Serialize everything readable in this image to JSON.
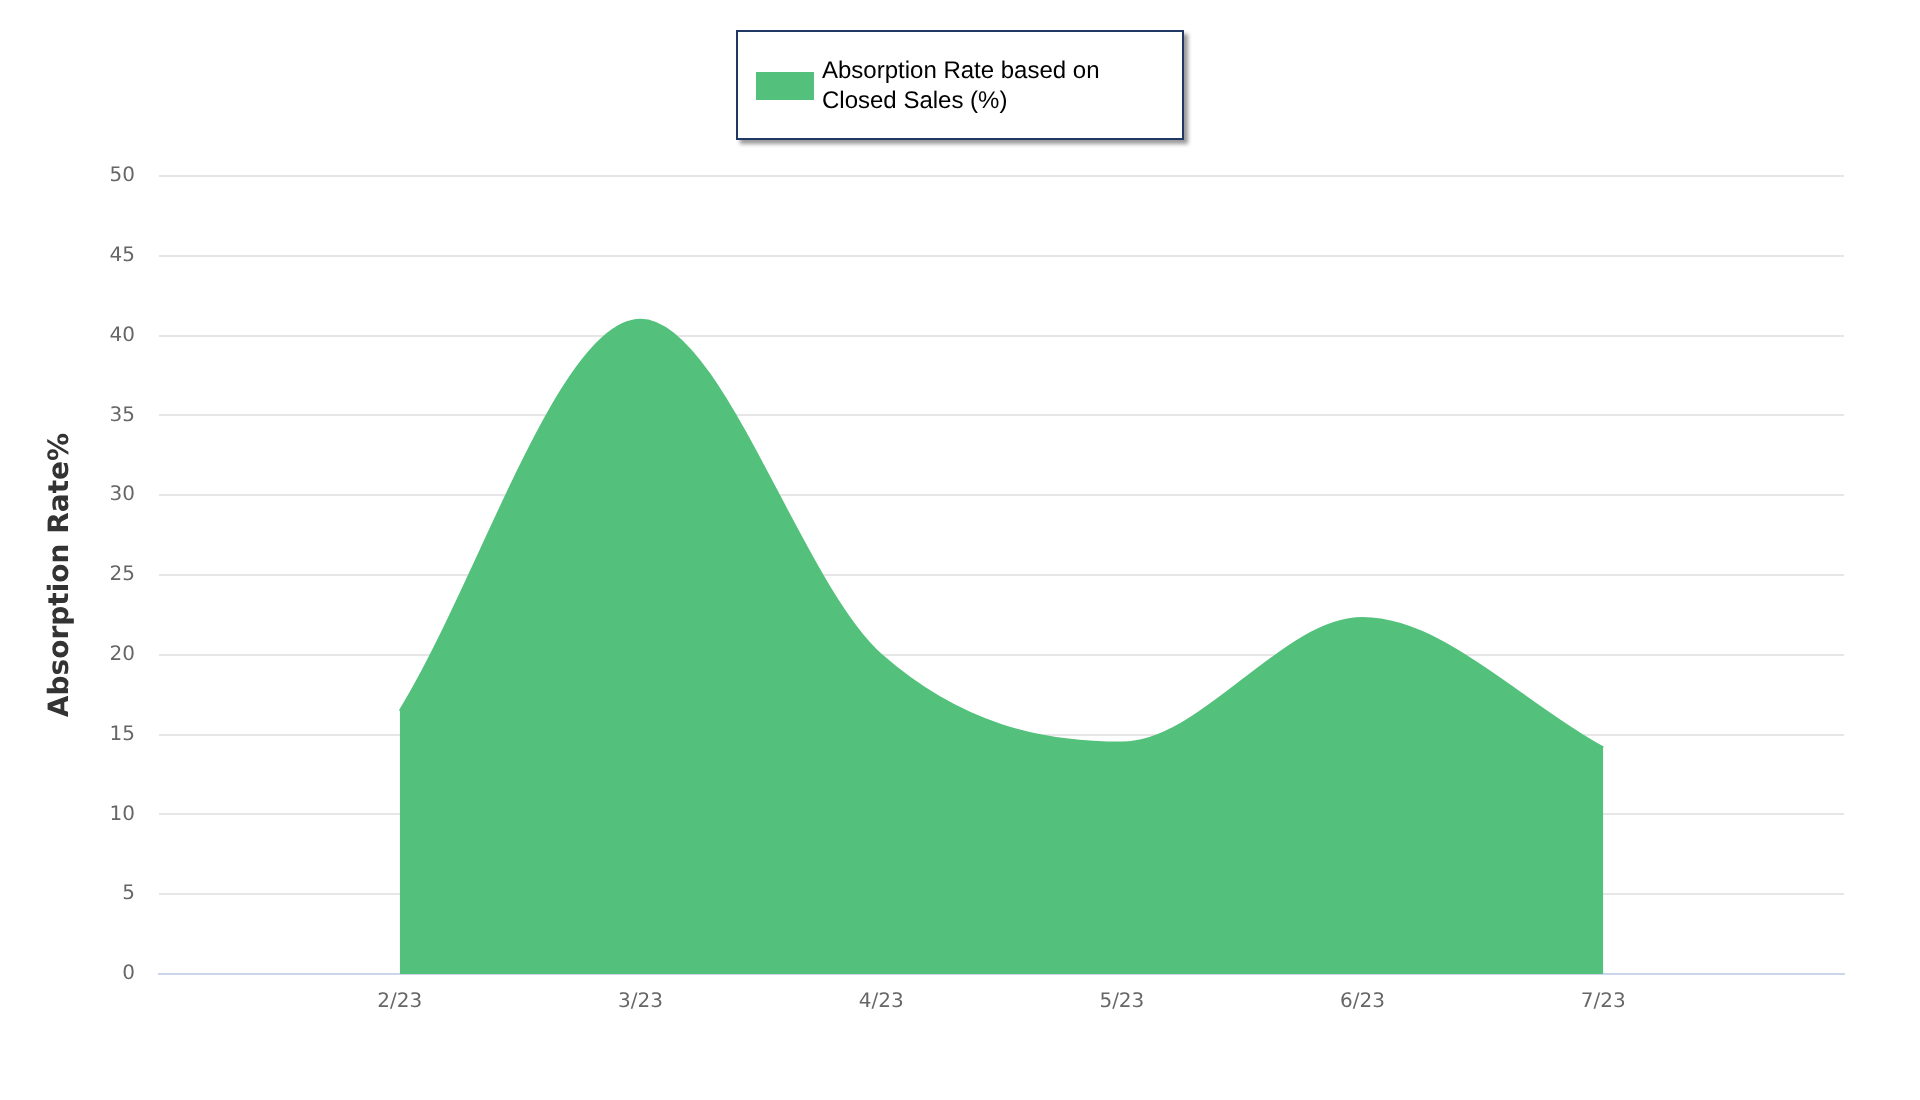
{
  "chart_data": {
    "type": "area",
    "ylabel": "Absorption Rate%",
    "categories": [
      null,
      "2/23",
      "3/23",
      "4/23",
      "5/23",
      "6/23",
      "7/23",
      null
    ],
    "series": [
      {
        "name": "Absorption Rate based on Closed Sales (%)",
        "color": "#53c17b",
        "values": [
          null,
          16.5,
          41,
          20,
          14.5,
          22.3,
          14.2,
          null
        ]
      }
    ],
    "ylim": [
      0,
      50
    ],
    "yticks": [
      0,
      5,
      10,
      15,
      20,
      25,
      30,
      35,
      40,
      45,
      50
    ],
    "grid": "y",
    "legend": "top"
  }
}
